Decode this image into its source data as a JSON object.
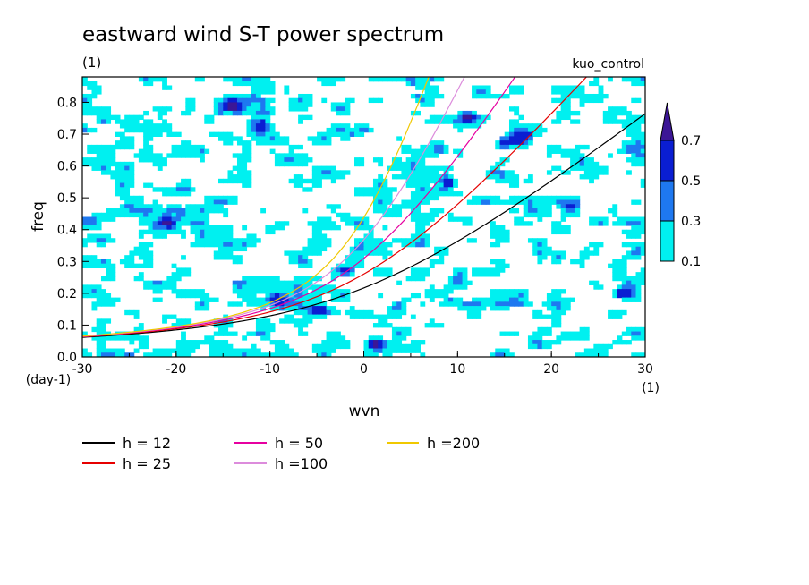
{
  "chart_data": {
    "type": "heatmap",
    "title": "eastward wind S-T power spectrum",
    "subtitle": "(1)",
    "case_label": "kuo_control",
    "xlabel": "wvn",
    "ylabel": "freq",
    "x_unit": "(1)",
    "y_unit": "(day-1)",
    "xlim": [
      -30,
      30
    ],
    "ylim": [
      0,
      0.88
    ],
    "x_ticks": [
      -30,
      -20,
      -10,
      0,
      10,
      20,
      30
    ],
    "x_tick_labels": [
      "-30",
      "-20",
      "-10",
      "0",
      "10",
      "20",
      "30"
    ],
    "y_ticks": [
      0,
      0.1,
      0.2,
      0.3,
      0.4,
      0.5,
      0.6,
      0.7,
      0.8
    ],
    "y_tick_labels": [
      "0.0",
      "0.1",
      "0.2",
      "0.3",
      "0.4",
      "0.5",
      "0.6",
      "0.7",
      "0.8"
    ],
    "contour_levels": [
      0.1,
      0.3,
      0.5,
      0.7
    ],
    "colorbar_labels": [
      "0.1",
      "0.3",
      "0.5",
      "0.7"
    ],
    "colorbar_colors": [
      "#00f0f0",
      "#1e78f0",
      "#0a1ed2",
      "#3c1696"
    ],
    "noisy_field": true,
    "hotspots": [
      {
        "x": 1,
        "y": 0.04,
        "level": 0.5
      },
      {
        "x": -5,
        "y": 0.15,
        "level": 0.5
      },
      {
        "x": -9,
        "y": 0.18,
        "level": 0.3
      },
      {
        "x": -2,
        "y": 0.27,
        "level": 0.5
      },
      {
        "x": 9,
        "y": 0.55,
        "level": 0.5
      },
      {
        "x": 11,
        "y": 0.76,
        "level": 0.5
      },
      {
        "x": 15,
        "y": 0.67,
        "level": 0.5
      },
      {
        "x": 17,
        "y": 0.69,
        "level": 0.5
      },
      {
        "x": -14,
        "y": 0.79,
        "level": 0.5
      },
      {
        "x": -11,
        "y": 0.72,
        "level": 0.3
      },
      {
        "x": 5,
        "y": 0.88,
        "level": 0.5
      },
      {
        "x": 28,
        "y": 0.2,
        "level": 0.5
      },
      {
        "x": 22,
        "y": 0.47,
        "level": 0.3
      },
      {
        "x": -21,
        "y": 0.42,
        "level": 0.5
      }
    ],
    "series": [
      {
        "name": "h = 12",
        "h": 12,
        "color": "#000000"
      },
      {
        "name": "h = 25",
        "h": 25,
        "color": "#e60000"
      },
      {
        "name": "h = 50",
        "h": 50,
        "color": "#e600a0"
      },
      {
        "name": "h =100",
        "h": 100,
        "color": "#dc8cdc"
      },
      {
        "name": "h =200",
        "h": 200,
        "color": "#f0c800"
      }
    ],
    "grid": false,
    "legend_position": "bottom-left"
  }
}
